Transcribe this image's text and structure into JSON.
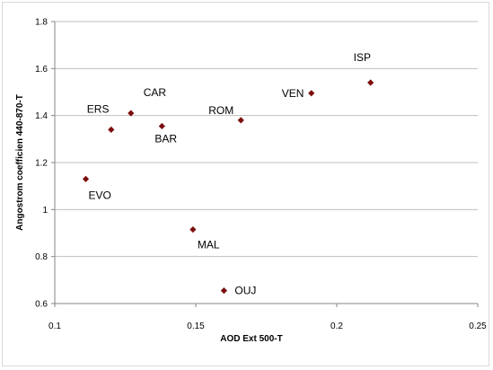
{
  "chart_data": {
    "type": "scatter",
    "xlabel": "AOD Ext 500-T",
    "ylabel": "Angostrom coefficien 440-870-T",
    "xlim": [
      0.1,
      0.25
    ],
    "ylim": [
      0.6,
      1.8
    ],
    "xticks": [
      "0.1",
      "0.15",
      "0.2",
      "0.25"
    ],
    "yticks": [
      "0.6",
      "0.8",
      "1",
      "1.2",
      "1.4",
      "1.6",
      "1.8"
    ],
    "grid": "horizontal",
    "marker_color": "#7b0d0d",
    "points": [
      {
        "label": "EVO",
        "x": 0.111,
        "y": 1.13
      },
      {
        "label": "ERS",
        "x": 0.12,
        "y": 1.34
      },
      {
        "label": "CAR",
        "x": 0.127,
        "y": 1.41
      },
      {
        "label": "BAR",
        "x": 0.138,
        "y": 1.355
      },
      {
        "label": "MAL",
        "x": 0.149,
        "y": 0.915
      },
      {
        "label": "OUJ",
        "x": 0.16,
        "y": 0.655
      },
      {
        "label": "ROM",
        "x": 0.166,
        "y": 1.38
      },
      {
        "label": "VEN",
        "x": 0.191,
        "y": 1.495
      },
      {
        "label": "ISP",
        "x": 0.212,
        "y": 1.54
      }
    ]
  }
}
